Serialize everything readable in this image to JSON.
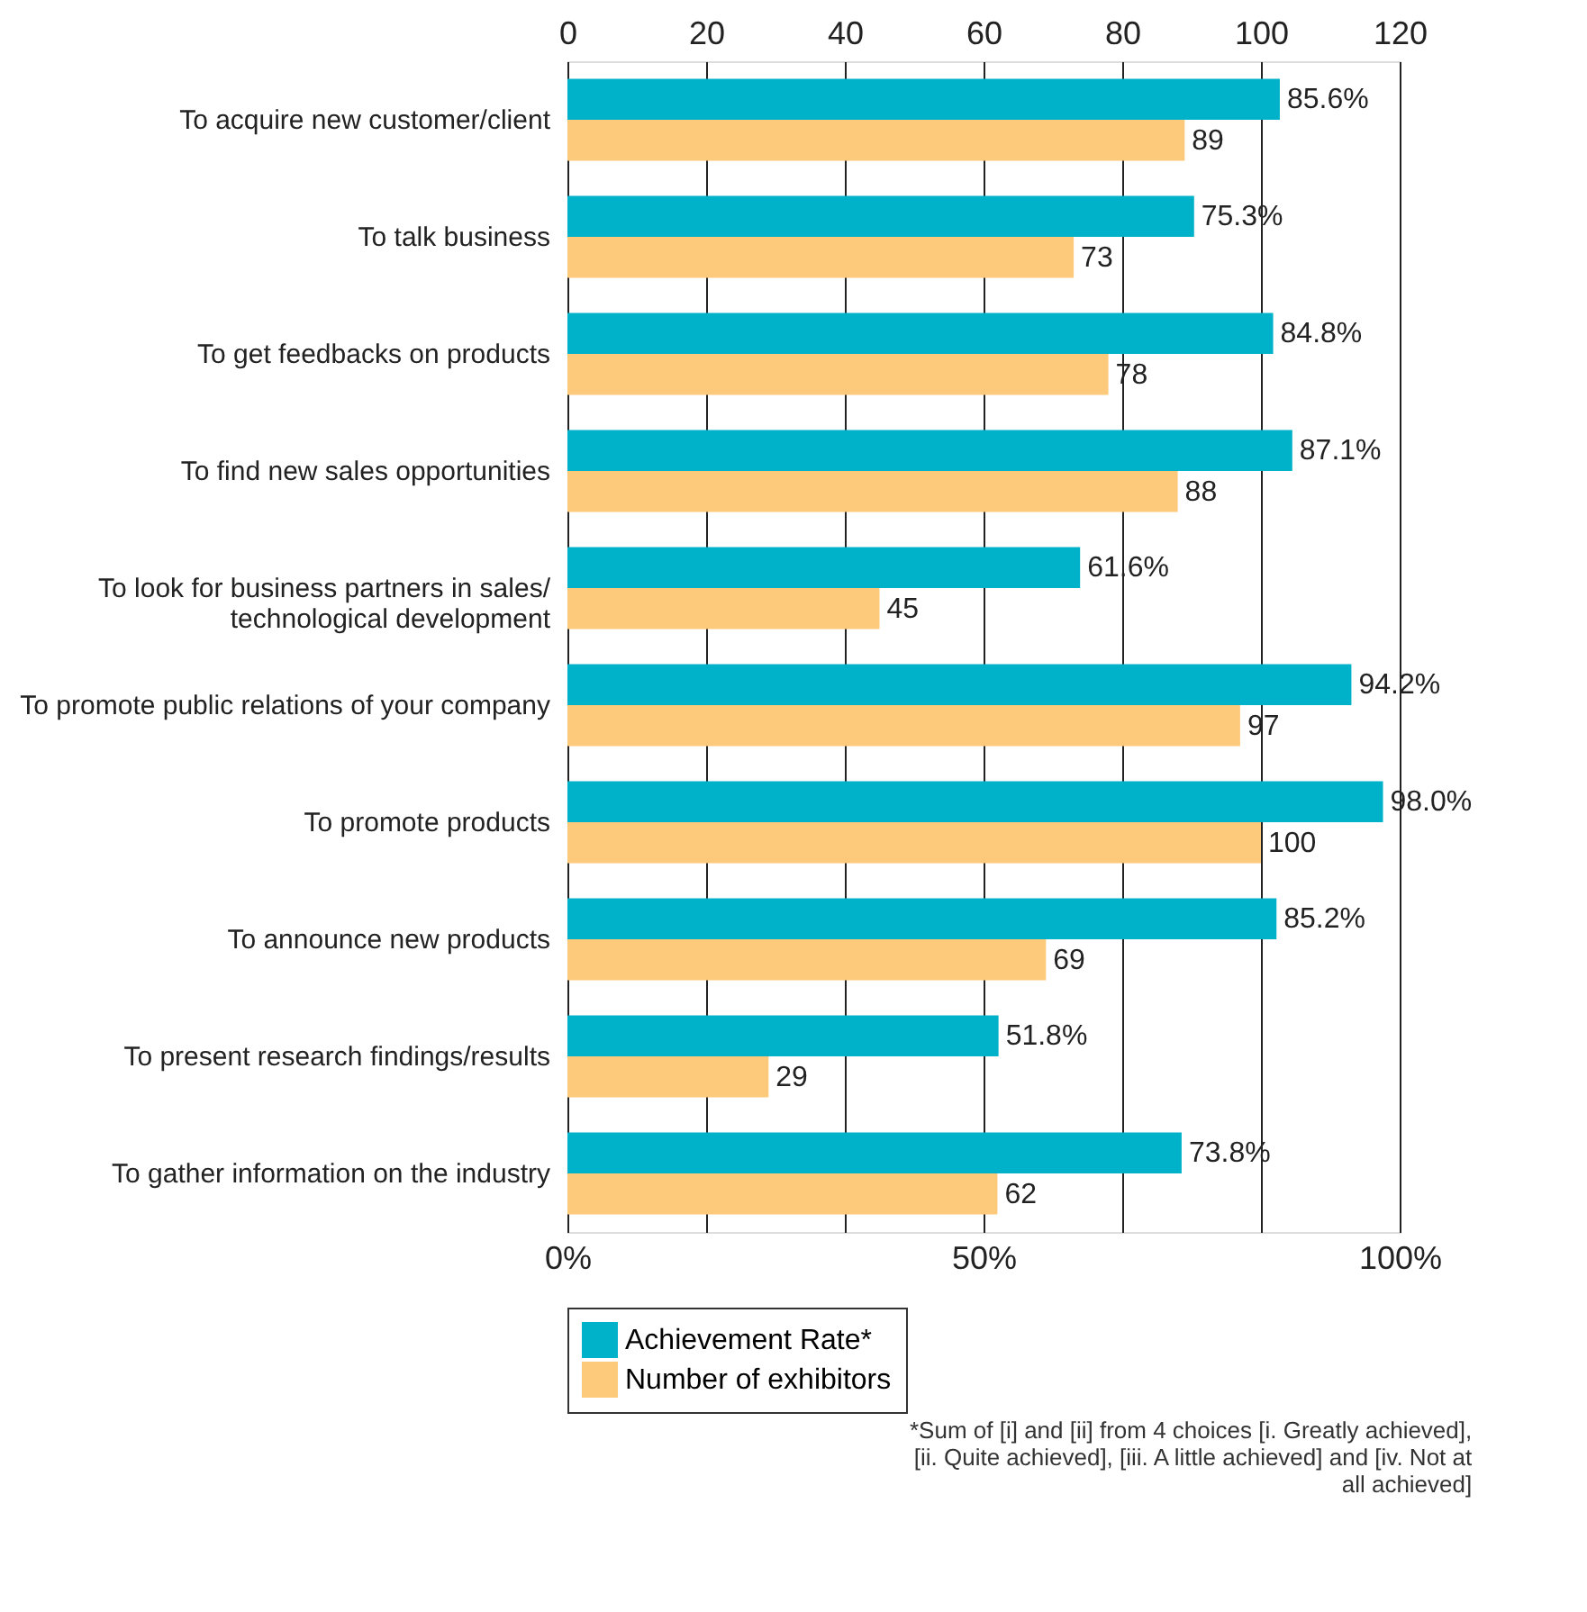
{
  "chart_data": {
    "type": "bar",
    "orientation": "horizontal",
    "categories": [
      "To acquire new customer/client",
      "To talk business",
      "To get feedbacks on products",
      "To find new sales opportunities",
      "To look for business partners in sales/ technological development",
      "To promote public relations of your company",
      "To promote products",
      "To announce new products",
      "To present research findings/results",
      "To gather information on the industry"
    ],
    "series": [
      {
        "name": "Achievement Rate*",
        "color": "#00b2c9",
        "values": [
          85.6,
          75.3,
          84.8,
          87.1,
          61.6,
          94.2,
          98.0,
          85.2,
          51.8,
          73.8
        ],
        "value_labels": [
          "85.6%",
          "75.3%",
          "84.8%",
          "87.1%",
          "61.6%",
          "94.2%",
          "98.0%",
          "85.2%",
          "51.8%",
          "73.8%"
        ]
      },
      {
        "name": "Number of exhibitors",
        "color": "#fdca7c",
        "axis": "x2",
        "values": [
          89,
          73,
          78,
          88,
          45,
          97,
          100,
          69,
          29,
          62
        ],
        "value_labels": [
          "89",
          "73",
          "78",
          "88",
          "45",
          "97",
          "100",
          "69",
          "29",
          "62"
        ]
      }
    ],
    "xlim": [
      0,
      100
    ],
    "xticks": [
      {
        "value": 0,
        "label": "0%"
      },
      {
        "value": 50,
        "label": "50%"
      },
      {
        "value": 100,
        "label": "100%"
      }
    ],
    "x2lim": [
      0,
      120
    ],
    "x2ticks": [
      0,
      20,
      40,
      60,
      80,
      100,
      120
    ],
    "grid": "x",
    "legend": "bottom",
    "annotations": [
      "*Sum of [i] and [ii] from 4 choices [i. Greatly achieved], [ii. Quite achieved], [iii. A little achieved] and [iv. Not at all achieved]"
    ]
  }
}
